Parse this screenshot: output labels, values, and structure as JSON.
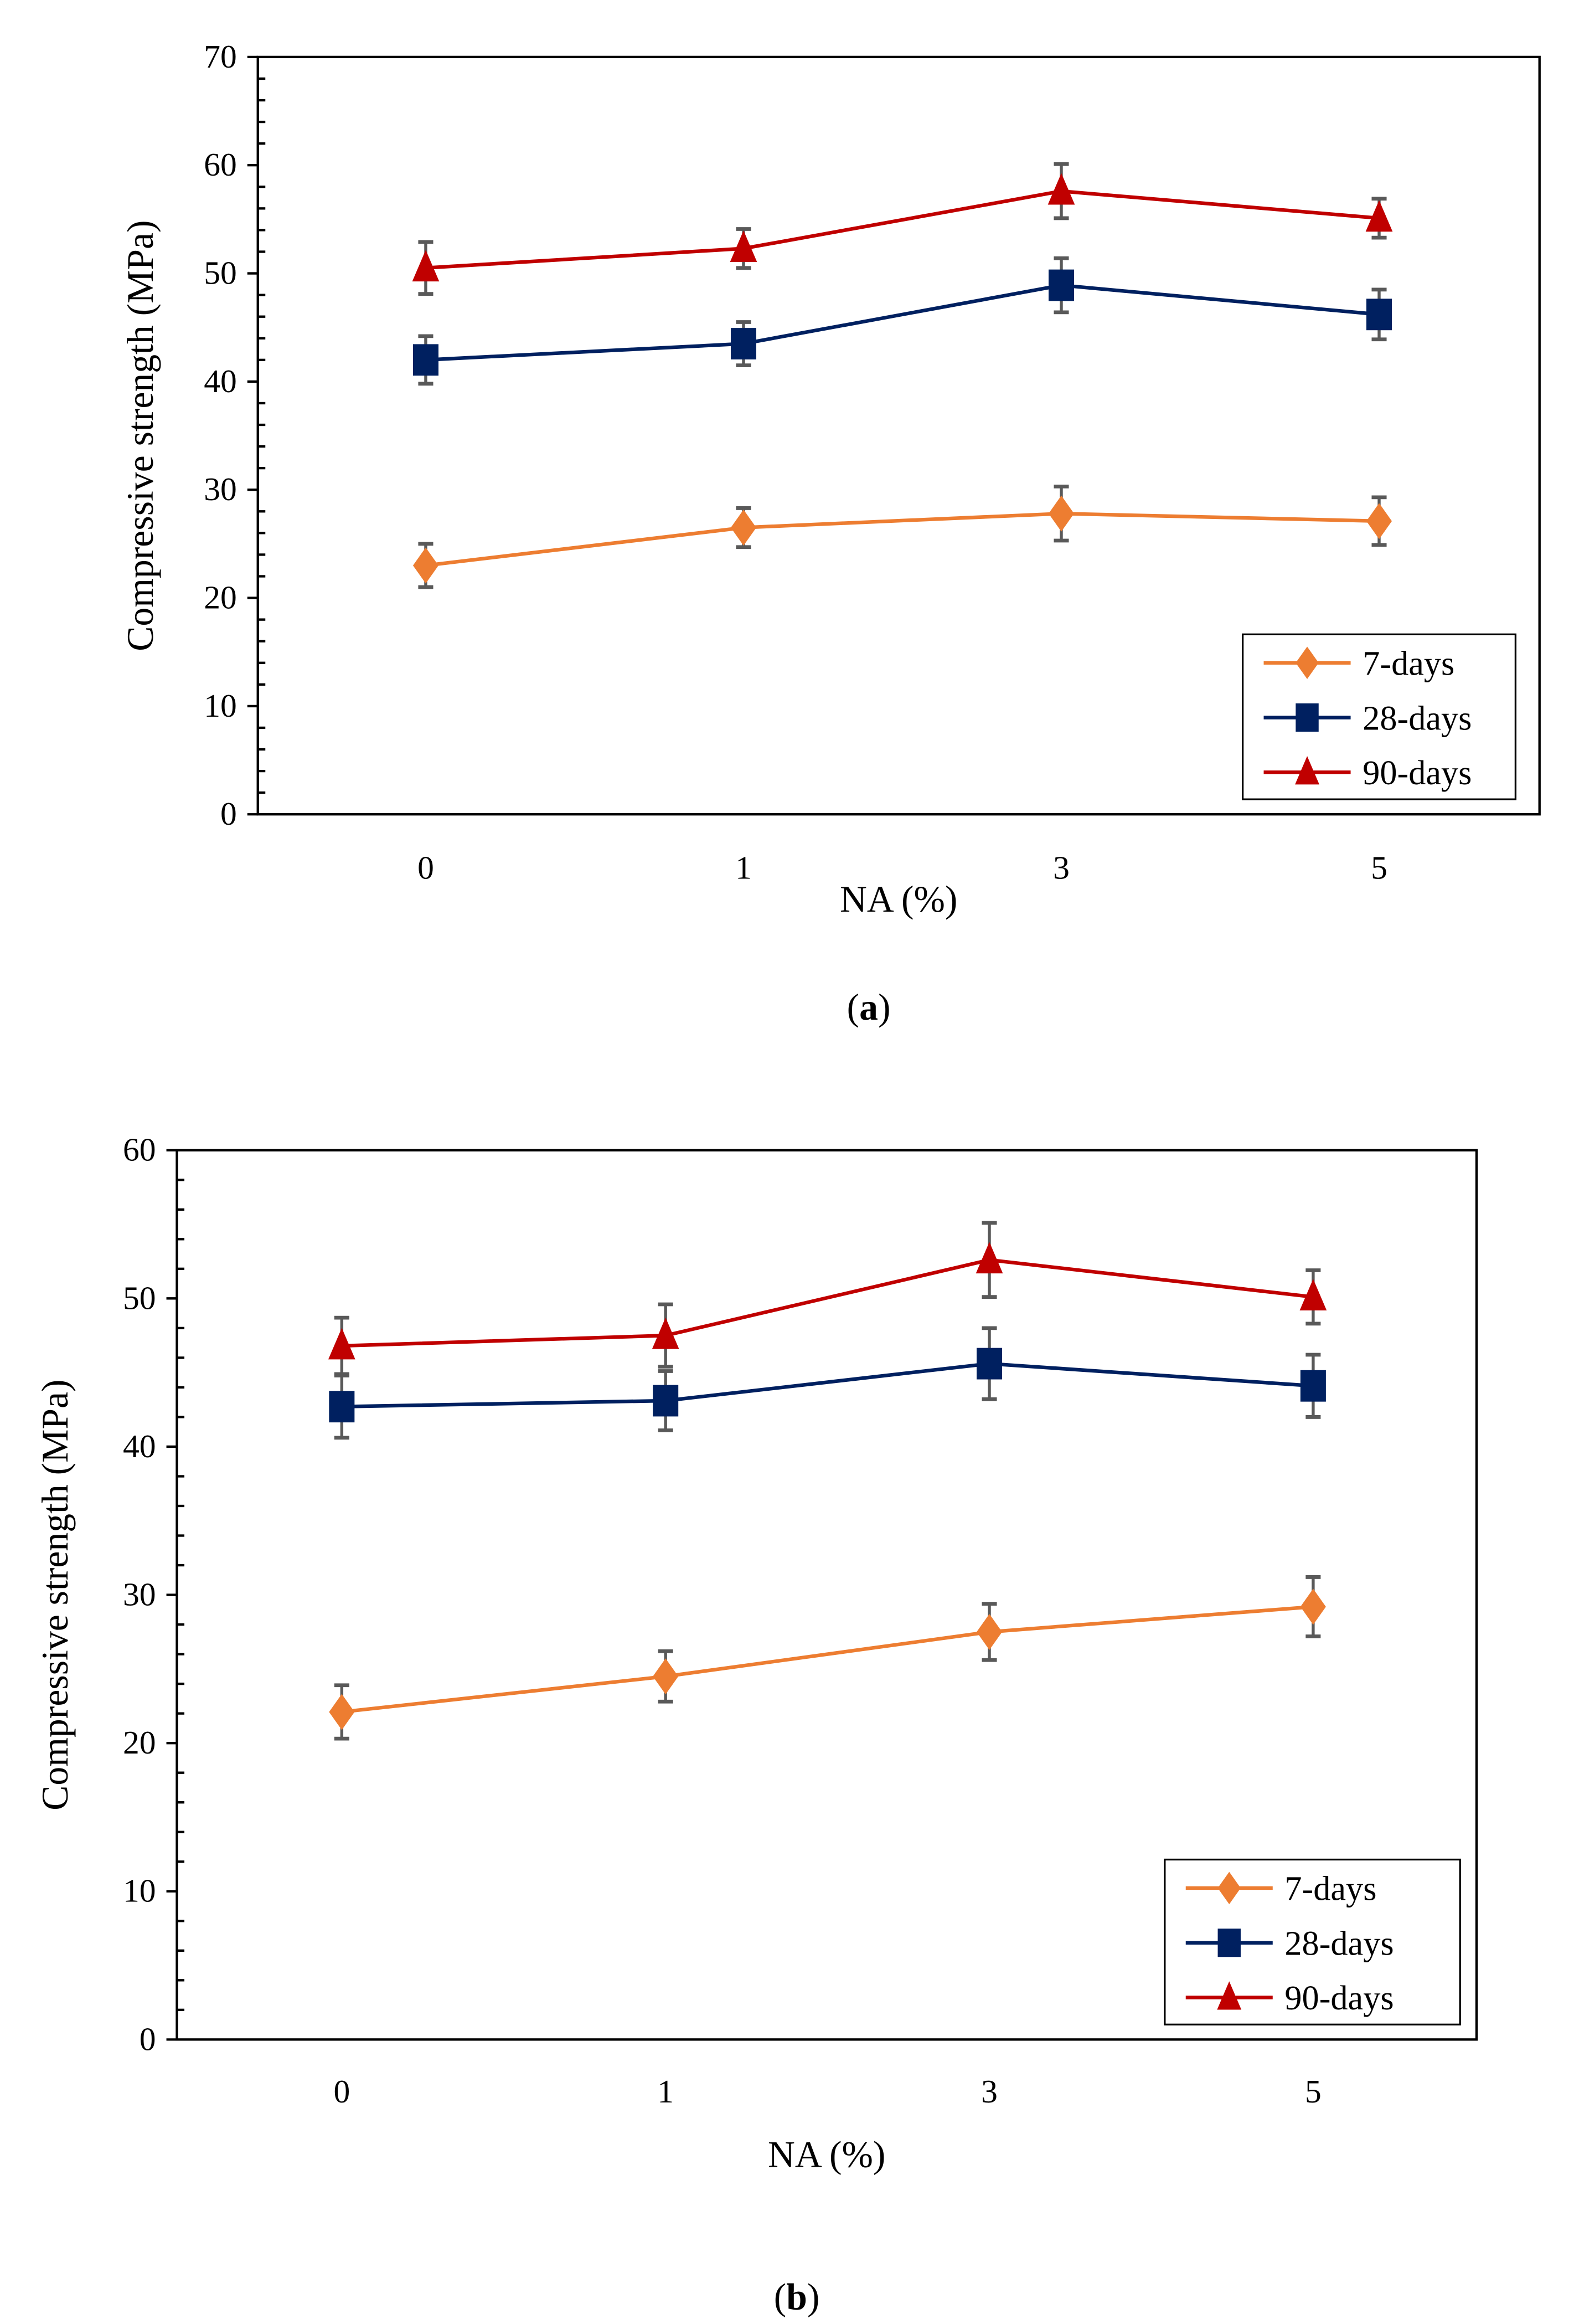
{
  "colors": {
    "7-days": "#ED7D31",
    "28-days": "#002060",
    "90-days": "#C00000",
    "errorbar": "#595959"
  },
  "chart_data": [
    {
      "type": "line",
      "panel_label": "a",
      "categories": [
        "0",
        "1",
        "3",
        "5"
      ],
      "xlabel": "NA (%)",
      "ylabel": "Compressive strength (MPa)",
      "ylim": [
        0,
        70
      ],
      "yticks": [
        "0",
        "10",
        "20",
        "30",
        "40",
        "50",
        "60",
        "70"
      ],
      "minor_tick_step": 2,
      "legend_position": "bottom-right",
      "series": [
        {
          "name": "7-days",
          "marker": "diamond",
          "values": [
            23.0,
            26.5,
            27.8,
            27.1
          ],
          "errors": [
            2.0,
            1.8,
            2.5,
            2.2
          ]
        },
        {
          "name": "28-days",
          "marker": "square",
          "values": [
            42.0,
            43.5,
            48.9,
            46.2
          ],
          "errors": [
            2.2,
            2.0,
            2.5,
            2.3
          ]
        },
        {
          "name": "90-days",
          "marker": "triangle",
          "values": [
            50.5,
            52.3,
            57.6,
            55.1
          ],
          "errors": [
            2.4,
            1.8,
            2.5,
            1.8
          ]
        }
      ]
    },
    {
      "type": "line",
      "panel_label": "b",
      "categories": [
        "0",
        "1",
        "3",
        "5"
      ],
      "xlabel": "NA (%)",
      "ylabel": "Compressive strength (MPa)",
      "ylim": [
        0,
        60
      ],
      "yticks": [
        "0",
        "10",
        "20",
        "30",
        "40",
        "50",
        "60"
      ],
      "minor_tick_step": 2,
      "legend_position": "bottom-right",
      "series": [
        {
          "name": "7-days",
          "marker": "diamond",
          "values": [
            22.1,
            24.5,
            27.5,
            29.2
          ],
          "errors": [
            1.8,
            1.7,
            1.9,
            2.0
          ]
        },
        {
          "name": "28-days",
          "marker": "square",
          "values": [
            42.7,
            43.1,
            45.6,
            44.1
          ],
          "errors": [
            2.1,
            2.0,
            2.4,
            2.1
          ]
        },
        {
          "name": "90-days",
          "marker": "triangle",
          "values": [
            46.8,
            47.5,
            52.6,
            50.1
          ],
          "errors": [
            1.9,
            2.1,
            2.5,
            1.8
          ]
        }
      ]
    }
  ]
}
